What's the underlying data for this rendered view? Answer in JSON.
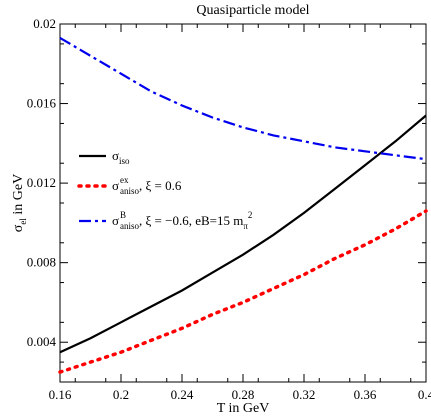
{
  "chart_data": {
    "type": "line",
    "title": "Quasiparticle model",
    "xlabel": "T in GeV",
    "ylabel": {
      "base": "σ",
      "sub": "el",
      "rest": " in GeV"
    },
    "xlim": [
      0.16,
      0.4
    ],
    "ylim": [
      0.002,
      0.02
    ],
    "x_ticks": [
      "0.16",
      "0.2",
      "0.24",
      "0.28",
      "0.32",
      "0.36",
      "0.4"
    ],
    "y_ticks": [
      "0.004",
      "0.008",
      "0.012",
      "0.016",
      "0.02"
    ],
    "grid": false,
    "legend_position": "left",
    "series": [
      {
        "style": "solid",
        "color": "#000000",
        "legend": {
          "base": "σ",
          "sub": "iso",
          "sup": "",
          "rest": ""
        },
        "x": [
          0.16,
          0.18,
          0.2,
          0.22,
          0.24,
          0.26,
          0.28,
          0.3,
          0.32,
          0.34,
          0.36,
          0.38,
          0.4
        ],
        "y": [
          0.0035,
          0.0042,
          0.005,
          0.0058,
          0.0066,
          0.0075,
          0.0084,
          0.0094,
          0.0105,
          0.0117,
          0.0129,
          0.0141,
          0.0154
        ]
      },
      {
        "style": "dotted",
        "color": "#ff0000",
        "legend": {
          "base": "σ",
          "sub": "aniso",
          "sup": "ex",
          "rest": ", ξ = 0.6"
        },
        "x": [
          0.16,
          0.18,
          0.2,
          0.22,
          0.24,
          0.26,
          0.28,
          0.3,
          0.32,
          0.34,
          0.36,
          0.38,
          0.4
        ],
        "y": [
          0.0025,
          0.003,
          0.0035,
          0.0041,
          0.0047,
          0.0054,
          0.006,
          0.0067,
          0.0074,
          0.0082,
          0.0089,
          0.0097,
          0.0106
        ]
      },
      {
        "style": "dashdot",
        "color": "#0000ee",
        "legend": {
          "base": "σ",
          "sub": "aniso",
          "sup": "B",
          "rest": ", ξ = −0.6, eB=15 m",
          "rest_sub": "π",
          "rest_sup": "2"
        },
        "x": [
          0.16,
          0.18,
          0.2,
          0.22,
          0.24,
          0.26,
          0.28,
          0.3,
          0.32,
          0.34,
          0.36,
          0.38,
          0.4
        ],
        "y": [
          0.0193,
          0.0184,
          0.0175,
          0.0166,
          0.0159,
          0.0153,
          0.0148,
          0.0144,
          0.0141,
          0.0138,
          0.0136,
          0.0134,
          0.0132
        ]
      }
    ]
  }
}
